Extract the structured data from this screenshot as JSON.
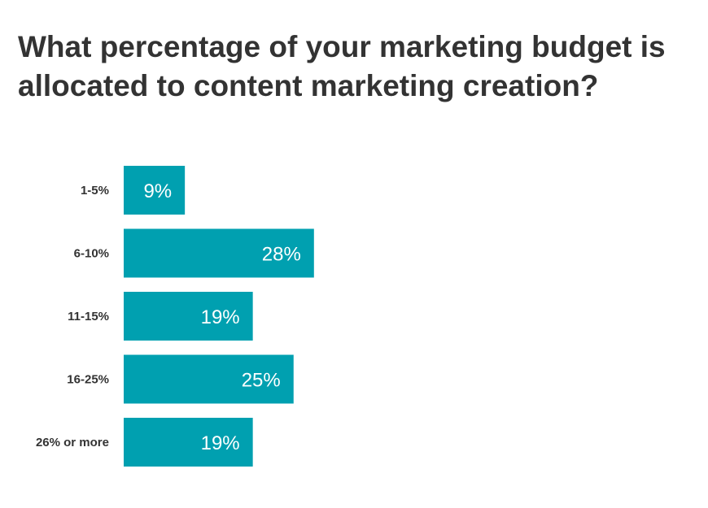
{
  "chart_data": {
    "type": "bar",
    "orientation": "horizontal",
    "title": "What percentage of your marketing budget is allocated to content marketing creation?",
    "categories": [
      "1-5%",
      "6-10%",
      "11-15%",
      "16-25%",
      "26% or more"
    ],
    "values": [
      9,
      28,
      19,
      25,
      19
    ],
    "value_labels": [
      "9%",
      "28%",
      "19%",
      "25%",
      "19%"
    ],
    "xlabel": "",
    "ylabel": "",
    "grid": false,
    "legend": false,
    "bar_color": "#00A0B0",
    "label_color": "#FFFFFF"
  }
}
